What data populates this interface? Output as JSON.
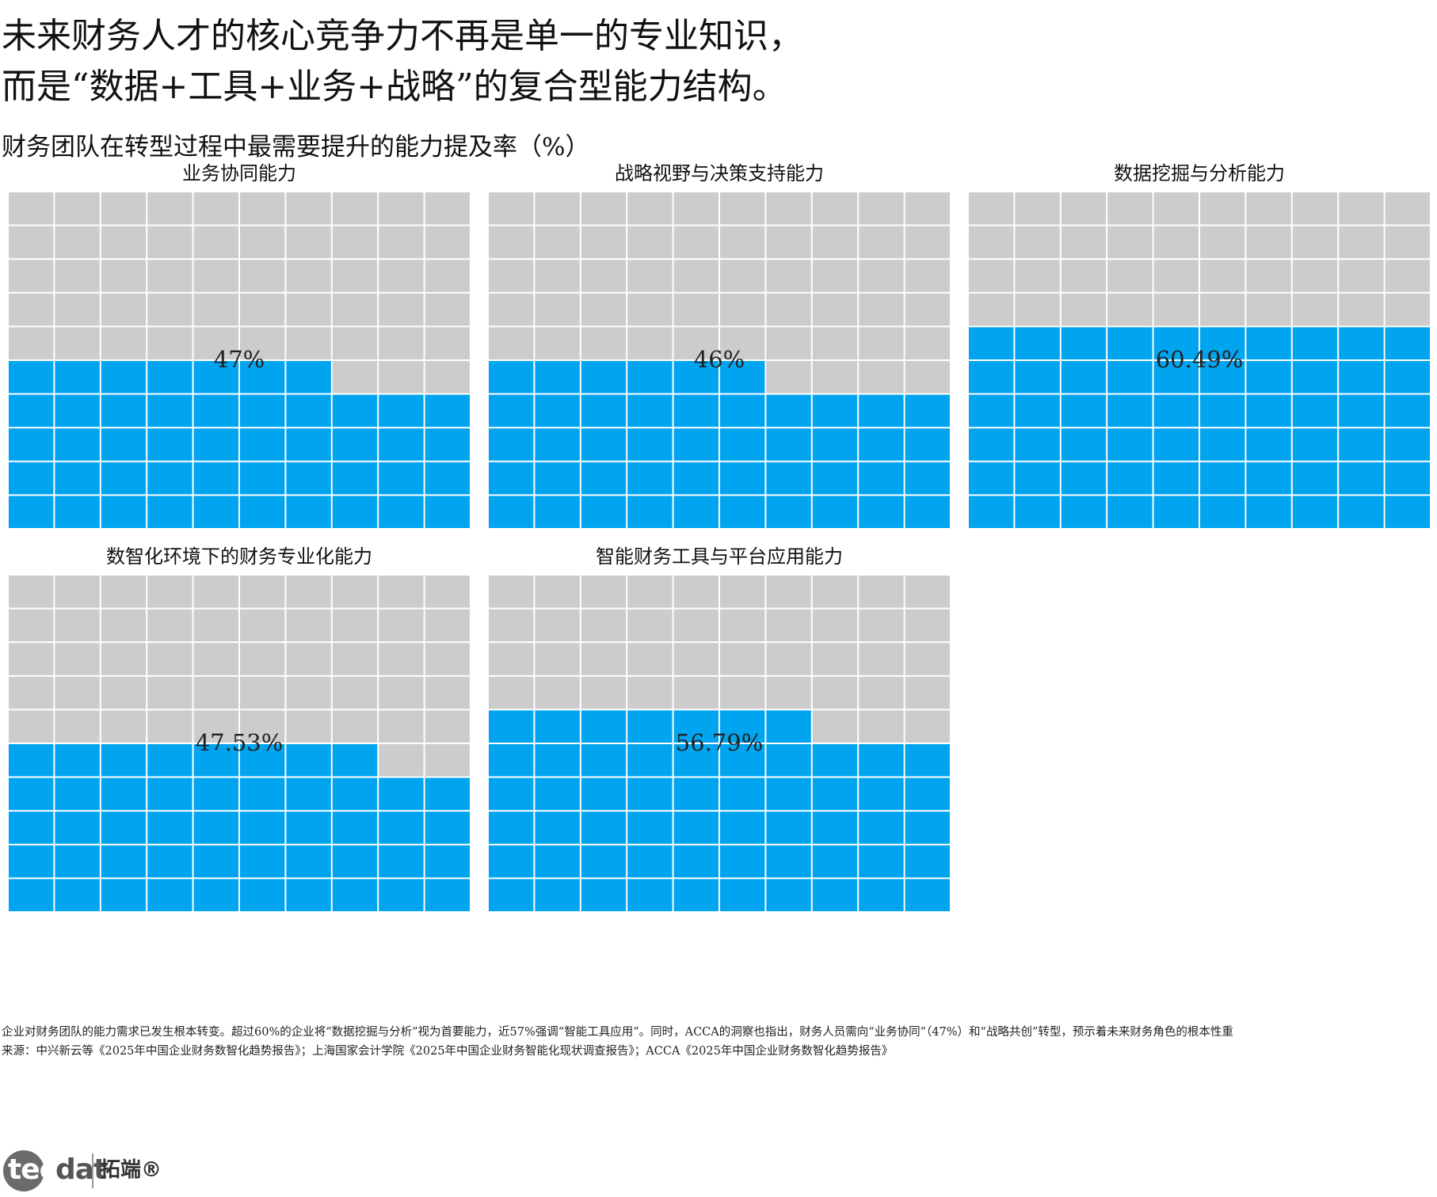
{
  "header": {
    "headline_lines": [
      "未来财务人才的核心竞争力不再是单一的专业知识，",
      "而是“数据+工具+业务+战略”的复合型能力结构。"
    ],
    "subtitle": "财务团队在转型过程中最需要提升的能力提及率（%）"
  },
  "chart_data": {
    "type": "waffle",
    "grid": {
      "rows": 10,
      "cols": 10
    },
    "colors": {
      "filled": "#00a4ef",
      "empty": "#cccccc",
      "gridline": "#ffffff"
    },
    "panels": [
      {
        "title": "业务协同能力",
        "value": 47,
        "label": "47%"
      },
      {
        "title": "战略视野与决策支持能力",
        "value": 46,
        "label": "46%"
      },
      {
        "title": "数据挖掘与分析能力",
        "value": 60.49,
        "label": "60.49%"
      },
      {
        "title": "数智化环境下的财务专业化能力",
        "value": 47.53,
        "label": "47.53%"
      },
      {
        "title": "智能财务工具与平台应用能力",
        "value": 56.79,
        "label": "56.79%"
      }
    ]
  },
  "footer": {
    "note": "企业对财务团队的能力需求已发生根本转变。超过60%的企业将“数据挖掘与分析”视为首要能力，近57%强调“智能工具应用”。同时，ACCA的洞察也指出，财务人员需向“业务协同”（47%）和“战略共创”转型，预示着未来财务角色的根本性重",
    "source": "来源：中兴新云等《2025年中国企业财务数智化趋势报告》；上海国家会计学院《2025年中国企业财务智能化现状调查报告》；ACCA《2025年中国企业财务数智化趋势报告》"
  },
  "logo": {
    "word_light": "tec",
    "word_dark": "dat",
    "brand": "拓端®"
  }
}
